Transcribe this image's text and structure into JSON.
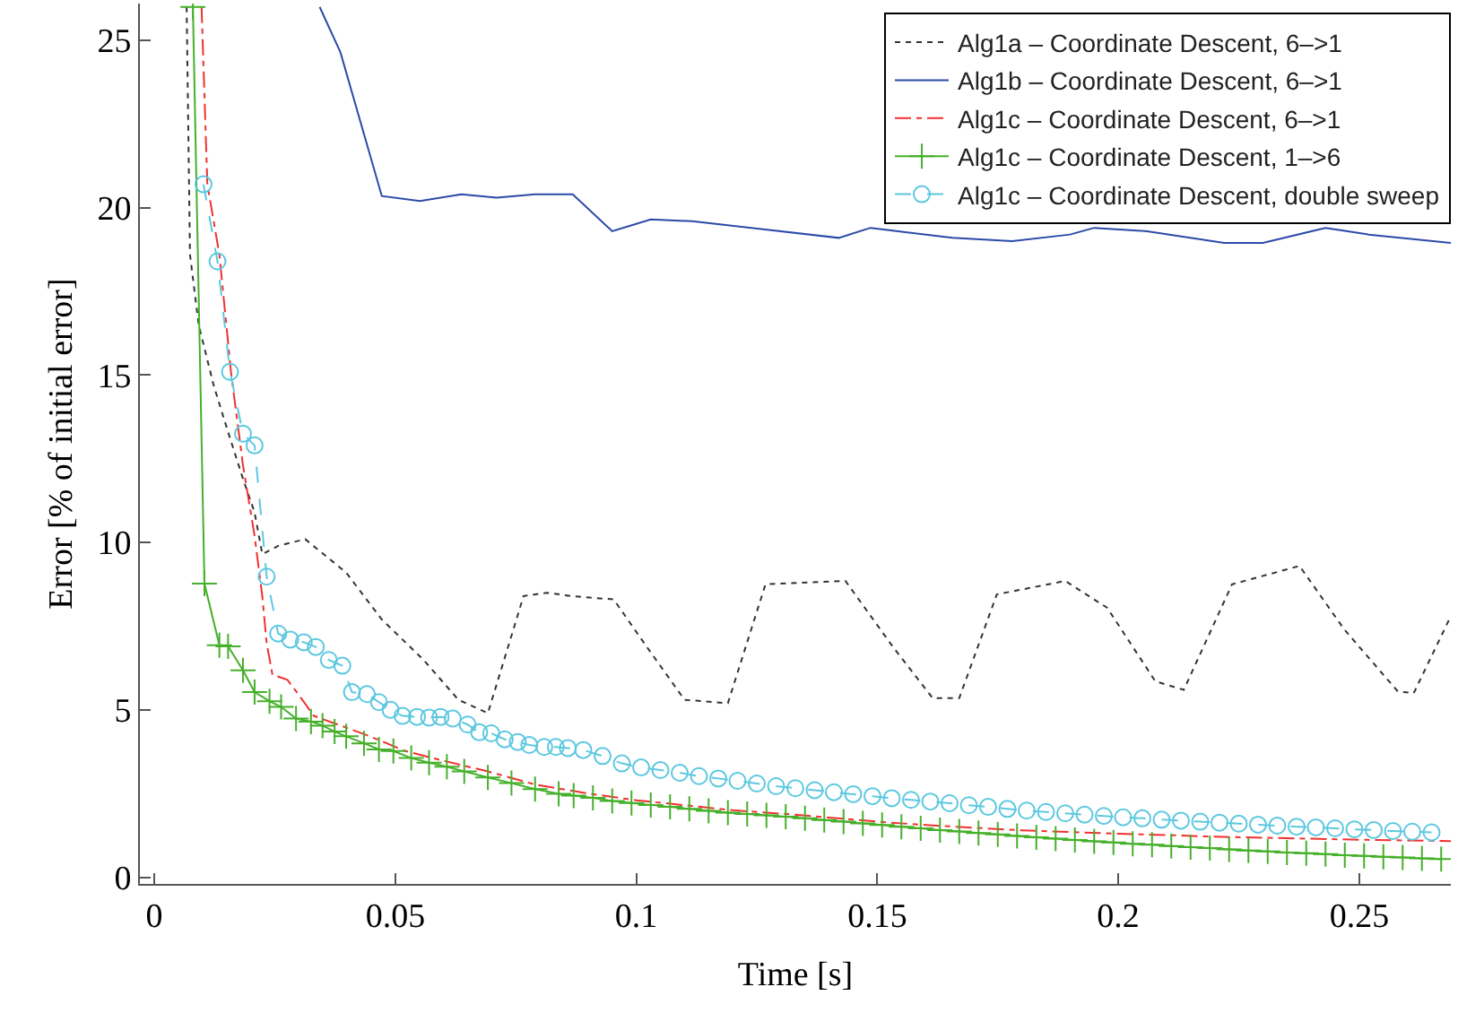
{
  "chart_data": {
    "type": "line",
    "xlabel": "Time [s]",
    "ylabel": "Error [% of initial error]",
    "xlim": [
      -0.003,
      0.269
    ],
    "ylim": [
      -0.2,
      26.1
    ],
    "xticks": [
      0,
      0.05,
      0.1,
      0.15,
      0.2,
      0.25
    ],
    "yticks": [
      0,
      5,
      10,
      15,
      20,
      25
    ],
    "legend": "top right",
    "series": [
      {
        "name": "Alg1a – Coordinate Descent, 6–>1",
        "color": "#333333",
        "line_style": "dotted",
        "marker": "none",
        "x": [
          0.0067,
          0.0074,
          0.0092,
          0.0123,
          0.0153,
          0.0184,
          0.0208,
          0.0224,
          0.0257,
          0.0313,
          0.0398,
          0.0472,
          0.0558,
          0.0631,
          0.0692,
          0.0766,
          0.0815,
          0.0864,
          0.0953,
          0.1016,
          0.11,
          0.119,
          0.1268,
          0.1434,
          0.1534,
          0.1615,
          0.167,
          0.1748,
          0.189,
          0.1977,
          0.2077,
          0.2136,
          0.2236,
          0.2376,
          0.2469,
          0.258,
          0.2613,
          0.269
        ],
        "values": [
          26.0,
          18.6,
          16.5,
          14.7,
          13.3,
          11.9,
          10.9,
          9.65,
          9.9,
          10.1,
          9.1,
          7.7,
          6.5,
          5.3,
          4.9,
          8.4,
          8.5,
          8.4,
          8.3,
          7.0,
          5.3,
          5.2,
          8.75,
          8.85,
          6.85,
          5.35,
          5.35,
          8.45,
          8.85,
          8.05,
          5.85,
          5.6,
          8.75,
          9.3,
          7.4,
          5.55,
          5.5,
          7.8
        ]
      },
      {
        "name": "Alg1b – Coordinate Descent, 6–>1",
        "color": "#2b4aa8",
        "line_style": "solid",
        "marker": "none",
        "x": [
          0.0343,
          0.0386,
          0.0472,
          0.0551,
          0.0637,
          0.071,
          0.079,
          0.0868,
          0.095,
          0.103,
          0.1116,
          0.142,
          0.1486,
          0.1656,
          0.178,
          0.19,
          0.195,
          0.206,
          0.222,
          0.23,
          0.243,
          0.252,
          0.269
        ],
        "values": [
          26.0,
          24.65,
          20.35,
          20.2,
          20.4,
          20.3,
          20.4,
          20.4,
          19.3,
          19.65,
          19.6,
          19.1,
          19.4,
          19.1,
          19.0,
          19.2,
          19.4,
          19.3,
          18.95,
          18.95,
          19.4,
          19.2,
          18.95
        ]
      },
      {
        "name": "Alg1c – Coordinate Descent, 6–>1",
        "color": "#f03030",
        "line_style": "dashdot",
        "marker": "none",
        "x": [
          0.0098,
          0.011,
          0.0135,
          0.0159,
          0.0184,
          0.0208,
          0.0224,
          0.0233,
          0.0245,
          0.0276,
          0.03,
          0.0331,
          0.0398,
          0.0447,
          0.0521,
          0.0594,
          0.0692,
          0.079,
          0.09,
          0.1,
          0.11,
          0.12,
          0.13,
          0.14,
          0.15,
          0.16,
          0.17,
          0.18,
          0.19,
          0.2,
          0.21,
          0.22,
          0.23,
          0.24,
          0.25,
          0.26,
          0.269
        ],
        "values": [
          26.0,
          20.7,
          18.6,
          15.1,
          12.3,
          10.2,
          8.4,
          7.0,
          6.05,
          5.9,
          5.44,
          4.82,
          4.47,
          4.21,
          3.77,
          3.5,
          3.16,
          2.77,
          2.5,
          2.3,
          2.15,
          2.0,
          1.9,
          1.78,
          1.66,
          1.56,
          1.48,
          1.4,
          1.35,
          1.3,
          1.26,
          1.21,
          1.18,
          1.15,
          1.12,
          1.1,
          1.08
        ]
      },
      {
        "name": "Alg1c – Coordinate Descent, 1–>6",
        "color": "#45b02a",
        "line_style": "solid",
        "marker": "cross",
        "x": [
          0.008,
          0.0104,
          0.0135,
          0.0153,
          0.0184,
          0.0208,
          0.0239,
          0.0263,
          0.0294,
          0.0325,
          0.0349,
          0.0374,
          0.0398,
          0.0435,
          0.0466,
          0.0496,
          0.0533,
          0.057,
          0.0607,
          0.0643,
          0.0692,
          0.0741,
          0.079,
          0.0839,
          0.087,
          0.091,
          0.095,
          0.099,
          0.103,
          0.107,
          0.111,
          0.115,
          0.119,
          0.123,
          0.127,
          0.131,
          0.135,
          0.139,
          0.143,
          0.147,
          0.151,
          0.155,
          0.159,
          0.163,
          0.167,
          0.171,
          0.175,
          0.179,
          0.183,
          0.187,
          0.191,
          0.195,
          0.199,
          0.203,
          0.207,
          0.211,
          0.215,
          0.219,
          0.223,
          0.227,
          0.231,
          0.235,
          0.239,
          0.243,
          0.247,
          0.251,
          0.255,
          0.259,
          0.263,
          0.267
        ],
        "values": [
          26.0,
          8.77,
          6.93,
          6.9,
          6.18,
          5.53,
          5.26,
          5.09,
          4.74,
          4.65,
          4.53,
          4.35,
          4.21,
          4.0,
          3.82,
          3.77,
          3.56,
          3.42,
          3.3,
          3.16,
          2.98,
          2.81,
          2.63,
          2.49,
          2.44,
          2.37,
          2.28,
          2.22,
          2.16,
          2.1,
          2.04,
          1.98,
          1.93,
          1.89,
          1.85,
          1.81,
          1.76,
          1.71,
          1.66,
          1.61,
          1.56,
          1.51,
          1.46,
          1.41,
          1.37,
          1.32,
          1.28,
          1.23,
          1.19,
          1.15,
          1.11,
          1.07,
          1.04,
          1.0,
          0.97,
          0.93,
          0.9,
          0.87,
          0.83,
          0.8,
          0.77,
          0.74,
          0.72,
          0.69,
          0.66,
          0.64,
          0.61,
          0.59,
          0.56,
          0.54
        ]
      },
      {
        "name": "Alg1c – Coordinate Descent, double sweep",
        "color": "#5cc8e0",
        "line_style": "dashed",
        "marker": "circle",
        "x": [
          0.0102,
          0.0131,
          0.0157,
          0.0184,
          0.0208,
          0.0233,
          0.0257,
          0.0282,
          0.031,
          0.0335,
          0.0362,
          0.039,
          0.041,
          0.0441,
          0.0466,
          0.049,
          0.0515,
          0.0545,
          0.057,
          0.0594,
          0.0619,
          0.065,
          0.0674,
          0.0699,
          0.0727,
          0.0754,
          0.0778,
          0.0809,
          0.0833,
          0.0858,
          0.089,
          0.093,
          0.097,
          0.101,
          0.105,
          0.109,
          0.113,
          0.117,
          0.121,
          0.125,
          0.129,
          0.133,
          0.137,
          0.141,
          0.145,
          0.149,
          0.153,
          0.157,
          0.161,
          0.165,
          0.169,
          0.173,
          0.177,
          0.181,
          0.185,
          0.189,
          0.193,
          0.197,
          0.201,
          0.205,
          0.209,
          0.213,
          0.217,
          0.221,
          0.225,
          0.229,
          0.233,
          0.237,
          0.241,
          0.245,
          0.249,
          0.253,
          0.257,
          0.261,
          0.265
        ],
        "values": [
          20.7,
          18.4,
          15.1,
          13.25,
          12.9,
          8.98,
          7.28,
          7.1,
          7.02,
          6.88,
          6.49,
          6.32,
          5.53,
          5.47,
          5.23,
          5.0,
          4.82,
          4.79,
          4.77,
          4.79,
          4.74,
          4.56,
          4.33,
          4.3,
          4.12,
          4.04,
          3.95,
          3.89,
          3.89,
          3.86,
          3.8,
          3.62,
          3.4,
          3.28,
          3.2,
          3.12,
          3.02,
          2.95,
          2.88,
          2.8,
          2.72,
          2.66,
          2.6,
          2.54,
          2.48,
          2.42,
          2.36,
          2.31,
          2.26,
          2.21,
          2.15,
          2.1,
          2.04,
          1.99,
          1.95,
          1.91,
          1.87,
          1.83,
          1.79,
          1.76,
          1.72,
          1.69,
          1.66,
          1.63,
          1.6,
          1.57,
          1.54,
          1.51,
          1.49,
          1.46,
          1.43,
          1.41,
          1.38,
          1.36,
          1.34
        ]
      }
    ]
  }
}
